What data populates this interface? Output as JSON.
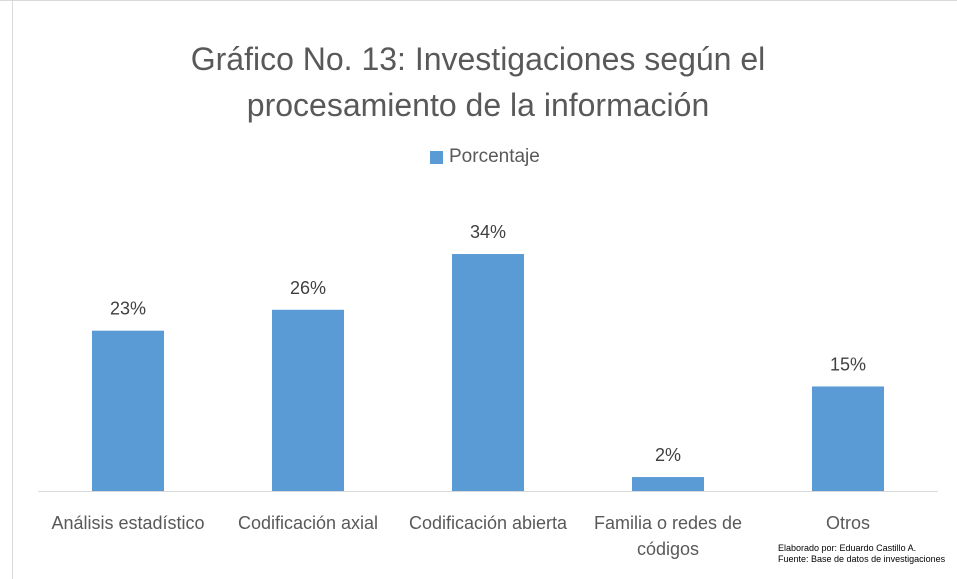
{
  "chart_data": {
    "type": "bar",
    "title": "Gráfico No. 13: Investigaciones según el procesamiento de la información",
    "categories": [
      "Análisis estadístico",
      "Codificación axial",
      "Codificación abierta",
      "Familia o redes de códigos",
      "Otros"
    ],
    "series": [
      {
        "name": "Porcentaje",
        "color": "#5b9bd5",
        "values": [
          23,
          26,
          34,
          2,
          15
        ],
        "value_labels": [
          "23%",
          "26%",
          "34%",
          "2%",
          "15%"
        ]
      }
    ],
    "annotations": [
      "Elaborado por: Eduardo Castillo A.",
      "Fuente: Base de datos de investigaciones"
    ]
  }
}
